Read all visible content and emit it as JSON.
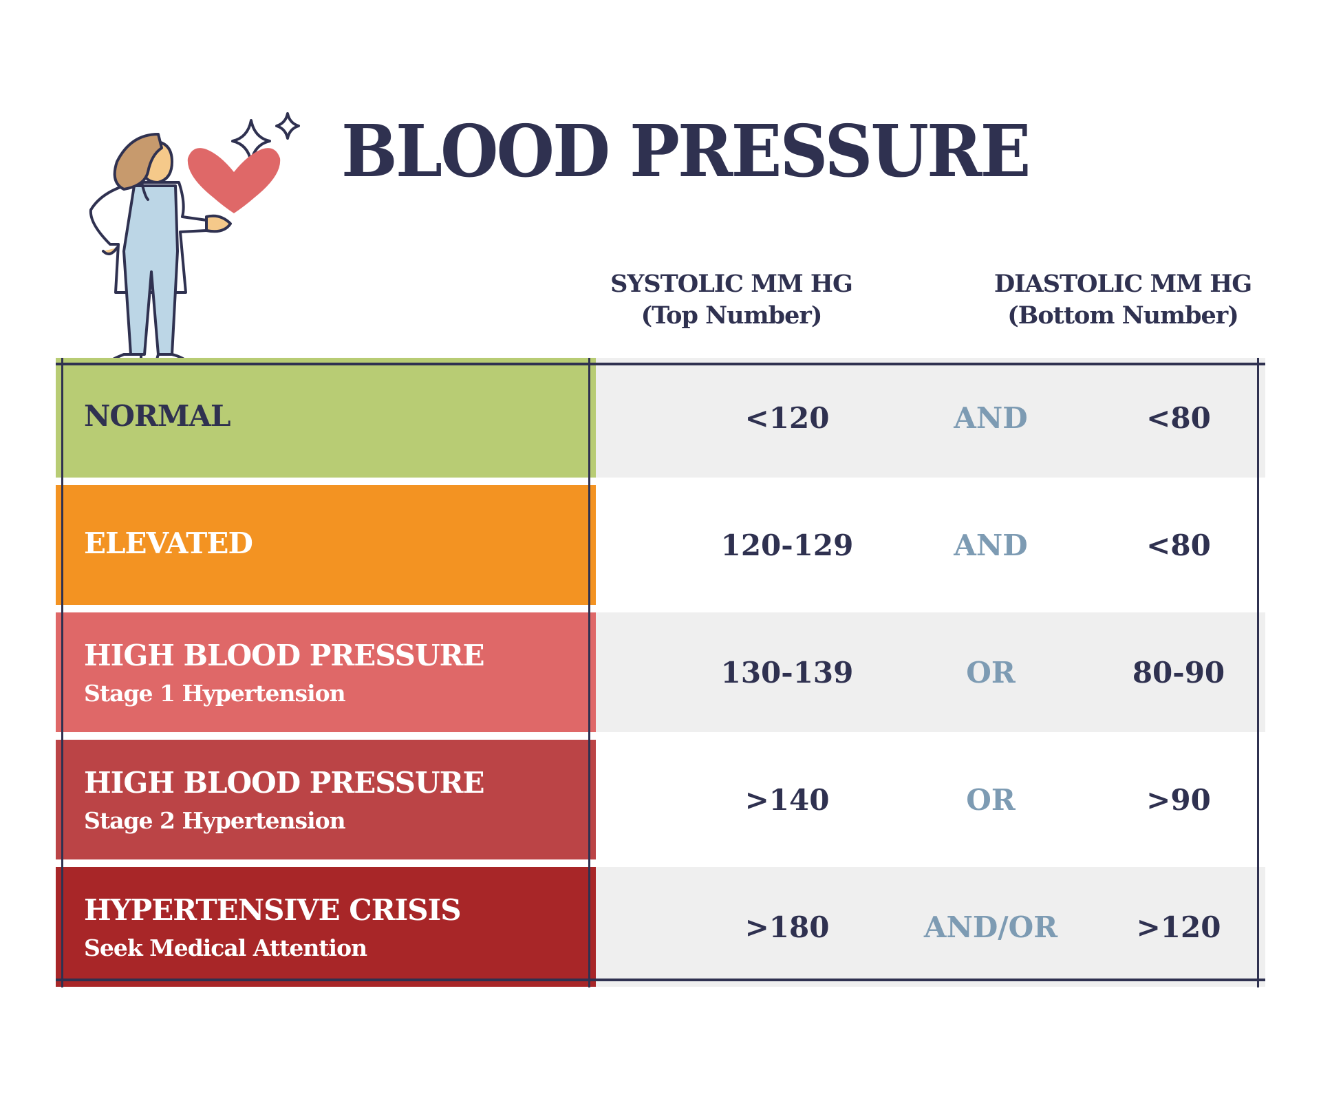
{
  "title": "BLOOD PRESSURE",
  "headers": {
    "systolic": "SYSTOLIC MM HG",
    "systolic_sub": "(Top Number)",
    "diastolic": "DIASTOLIC MM HG",
    "diastolic_sub": "(Bottom Number)"
  },
  "colors": {
    "text": "#2f3150",
    "connector": "#7d9bb3",
    "row_gray": "#efefef"
  },
  "rows": [
    {
      "label": "NORMAL",
      "sub": "",
      "systolic": "<120",
      "connector": "AND",
      "diastolic": "<80",
      "color": "#b8cc74",
      "label_color": "#2f3150"
    },
    {
      "label": "ELEVATED",
      "sub": "",
      "systolic": "120-129",
      "connector": "AND",
      "diastolic": "<80",
      "color": "#f39322",
      "label_color": "#ffffff"
    },
    {
      "label": "HIGH BLOOD PRESSURE",
      "sub": "Stage 1 Hypertension",
      "systolic": "130-139",
      "connector": "OR",
      "diastolic": "80-90",
      "color": "#df6868",
      "label_color": "#ffffff"
    },
    {
      "label": "HIGH BLOOD PRESSURE",
      "sub": "Stage 2 Hypertension",
      "systolic": ">140",
      "connector": "OR",
      "diastolic": ">90",
      "color": "#bb4446",
      "label_color": "#ffffff"
    },
    {
      "label": "HYPERTENSIVE CRISIS",
      "sub": "Seek Medical Attention",
      "systolic": ">180",
      "connector": "AND/OR",
      "diastolic": ">120",
      "color": "#a82628",
      "label_color": "#ffffff"
    }
  ]
}
